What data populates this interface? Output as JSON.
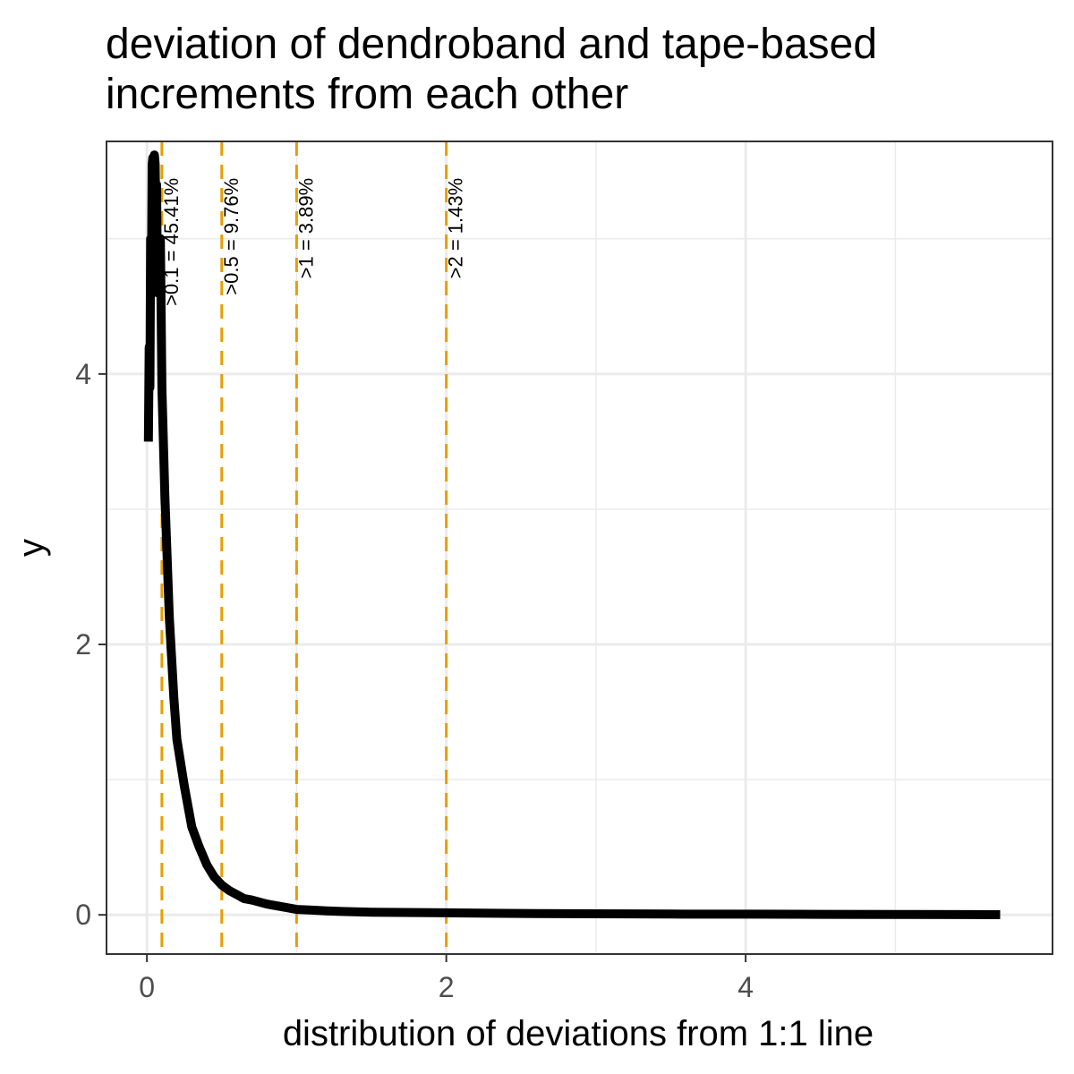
{
  "chart_data": {
    "type": "line",
    "title_lines": [
      "deviation of dendroband and tape-based",
      "increments from each other"
    ],
    "xlabel": "distribution of deviations from 1:1 line",
    "ylabel": "y",
    "xlim": [
      -0.27,
      6.05
    ],
    "ylim": [
      -0.29,
      5.72
    ],
    "x_ticks": [
      0,
      2,
      4
    ],
    "x_tick_labels": [
      "0",
      "2",
      "4"
    ],
    "x_minor_ticks": [
      1,
      3,
      5
    ],
    "y_ticks": [
      0,
      2,
      4
    ],
    "y_tick_labels": [
      "0",
      "2",
      "4"
    ],
    "y_minor_ticks": [
      1,
      3,
      5
    ],
    "grid": true,
    "series": [
      {
        "color": "#000000",
        "x": [
          0.01,
          0.015,
          0.02,
          0.025,
          0.03,
          0.035,
          0.04,
          0.045,
          0.05,
          0.055,
          0.06,
          0.065,
          0.07,
          0.075,
          0.08,
          0.09,
          0.1,
          0.12,
          0.15,
          0.18,
          0.2,
          0.25,
          0.3,
          0.35,
          0.4,
          0.45,
          0.5,
          0.55,
          0.6,
          0.65,
          0.7,
          0.8,
          0.9,
          1.0,
          1.1,
          1.2,
          1.3,
          1.5,
          1.7,
          2.0,
          2.3,
          2.6,
          3.0,
          3.5,
          4.0,
          4.5,
          5.0,
          5.5,
          5.7
        ],
        "y": [
          3.5,
          4.2,
          3.9,
          5.0,
          4.7,
          5.55,
          5.6,
          5.5,
          5.62,
          5.55,
          5.1,
          5.4,
          4.6,
          5.0,
          4.6,
          5.0,
          3.9,
          3.1,
          2.2,
          1.6,
          1.3,
          0.95,
          0.65,
          0.5,
          0.37,
          0.28,
          0.22,
          0.18,
          0.15,
          0.12,
          0.11,
          0.08,
          0.06,
          0.04,
          0.035,
          0.03,
          0.025,
          0.02,
          0.018,
          0.015,
          0.012,
          0.01,
          0.008,
          0.006,
          0.005,
          0.004,
          0.003,
          0.002,
          0.001
        ]
      }
    ],
    "reference_lines": {
      "color": "#E69F00",
      "style": "dashed",
      "lines": [
        {
          "x": 0.1,
          "label": ">0.1 = 45.41%"
        },
        {
          "x": 0.5,
          "label": ">0.5 = 9.76%"
        },
        {
          "x": 1,
          "label": ">1 = 3.89%"
        },
        {
          "x": 2,
          "label": ">2 = 1.43%"
        }
      ]
    },
    "annotation_y": 5.45
  }
}
